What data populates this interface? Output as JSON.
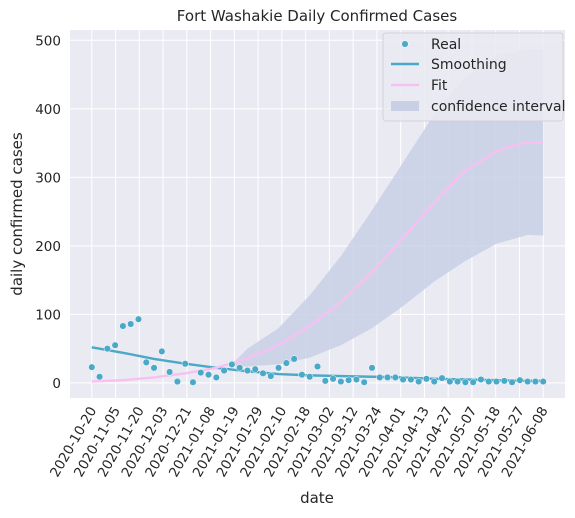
{
  "chart_data": {
    "type": "scatter",
    "title": "Fort Washakie Daily Confirmed Cases",
    "xlabel": "date",
    "ylabel": "daily confirmed cases",
    "ylim": [
      -22,
      515
    ],
    "yticks": [
      0,
      100,
      200,
      300,
      400,
      500
    ],
    "xticks": [
      "2020-10-20",
      "2020-11-05",
      "2020-11-20",
      "2020-12-03",
      "2020-12-21",
      "2021-01-08",
      "2021-01-19",
      "2021-01-29",
      "2021-02-10",
      "2021-02-18",
      "2021-03-02",
      "2021-03-12",
      "2021-03-24",
      "2021-04-01",
      "2021-04-13",
      "2021-04-27",
      "2021-05-07",
      "2021-05-18",
      "2021-05-27",
      "2021-06-08"
    ],
    "grid": true,
    "legend_position": "top-right",
    "colors": {
      "background": "#eaeaf2",
      "grid": "#ffffff",
      "real": "#4aa8c8",
      "smoothing": "#4aa8c8",
      "fit": "#f8c0f2",
      "band": "#c9d0e6"
    },
    "legend": [
      {
        "name": "Real",
        "kind": "marker"
      },
      {
        "name": "Smoothing",
        "kind": "line"
      },
      {
        "name": "Fit",
        "kind": "line"
      },
      {
        "name": "confidence interval",
        "kind": "band"
      }
    ],
    "series": [
      {
        "name": "Real",
        "kind": "scatter",
        "points": [
          [
            0,
            23
          ],
          [
            0.5,
            9
          ],
          [
            1,
            50
          ],
          [
            1.5,
            55
          ],
          [
            2,
            83
          ],
          [
            2.5,
            86
          ],
          [
            3,
            93
          ],
          [
            3.5,
            30
          ],
          [
            4,
            22
          ],
          [
            4.5,
            46
          ],
          [
            5,
            16
          ],
          [
            5.5,
            2
          ],
          [
            6,
            28
          ],
          [
            6.5,
            1
          ],
          [
            7,
            15
          ],
          [
            7.5,
            12
          ],
          [
            8,
            8
          ],
          [
            8.5,
            18
          ],
          [
            9,
            27
          ],
          [
            9.5,
            22
          ],
          [
            10,
            18
          ],
          [
            10.5,
            20
          ],
          [
            11,
            14
          ],
          [
            11.5,
            10
          ],
          [
            12,
            22
          ],
          [
            12.5,
            29
          ],
          [
            13,
            35
          ],
          [
            13.5,
            12
          ],
          [
            14,
            9
          ],
          [
            14.5,
            24
          ],
          [
            15,
            3
          ],
          [
            15.5,
            6
          ],
          [
            16,
            2
          ],
          [
            16.5,
            4
          ],
          [
            17,
            5
          ],
          [
            17.5,
            1
          ],
          [
            18,
            22
          ],
          [
            18.5,
            8
          ],
          [
            19,
            8
          ],
          [
            19.5,
            8
          ],
          [
            20,
            5
          ],
          [
            20.5,
            5
          ],
          [
            21,
            2
          ],
          [
            21.5,
            6
          ],
          [
            22,
            2
          ],
          [
            22.5,
            7
          ],
          [
            23,
            2
          ],
          [
            23.5,
            2
          ],
          [
            24,
            1
          ],
          [
            24.5,
            1
          ],
          [
            25,
            5
          ],
          [
            25.5,
            2
          ],
          [
            26,
            2
          ],
          [
            26.5,
            3
          ],
          [
            27,
            1
          ],
          [
            27.5,
            4
          ],
          [
            28,
            2
          ],
          [
            28.5,
            2
          ],
          [
            29,
            2
          ]
        ]
      },
      {
        "name": "Smoothing",
        "kind": "line",
        "points": [
          [
            0,
            52
          ],
          [
            2,
            44
          ],
          [
            4,
            35
          ],
          [
            6,
            28
          ],
          [
            8,
            22
          ],
          [
            10,
            17
          ],
          [
            12,
            13
          ],
          [
            14,
            11
          ],
          [
            16,
            10
          ],
          [
            18,
            9
          ],
          [
            20,
            8
          ],
          [
            22,
            6
          ],
          [
            24,
            5
          ],
          [
            26,
            4
          ],
          [
            28,
            3
          ],
          [
            29,
            3
          ]
        ]
      },
      {
        "name": "Fit",
        "kind": "line",
        "points": [
          [
            0,
            2
          ],
          [
            2,
            4
          ],
          [
            4,
            8
          ],
          [
            6,
            14
          ],
          [
            8,
            22
          ],
          [
            10,
            36
          ],
          [
            12,
            55
          ],
          [
            14,
            83
          ],
          [
            16,
            118
          ],
          [
            18,
            162
          ],
          [
            20,
            212
          ],
          [
            22,
            263
          ],
          [
            24,
            310
          ],
          [
            26,
            338
          ],
          [
            27,
            346
          ],
          [
            28,
            351
          ],
          [
            29,
            351
          ]
        ]
      },
      {
        "name": "confidence interval",
        "kind": "band",
        "upper": [
          [
            9,
            27
          ],
          [
            10,
            50
          ],
          [
            12,
            80
          ],
          [
            14,
            128
          ],
          [
            16,
            185
          ],
          [
            18,
            252
          ],
          [
            20,
            322
          ],
          [
            22,
            392
          ],
          [
            24,
            447
          ],
          [
            26,
            478
          ],
          [
            28,
            487
          ],
          [
            29,
            487
          ]
        ],
        "lower": [
          [
            29,
            215
          ],
          [
            28,
            216
          ],
          [
            26,
            203
          ],
          [
            24,
            178
          ],
          [
            22,
            148
          ],
          [
            20,
            112
          ],
          [
            18,
            80
          ],
          [
            16,
            55
          ],
          [
            14,
            37
          ],
          [
            12,
            27
          ],
          [
            10,
            24
          ],
          [
            9,
            24
          ]
        ]
      }
    ]
  }
}
